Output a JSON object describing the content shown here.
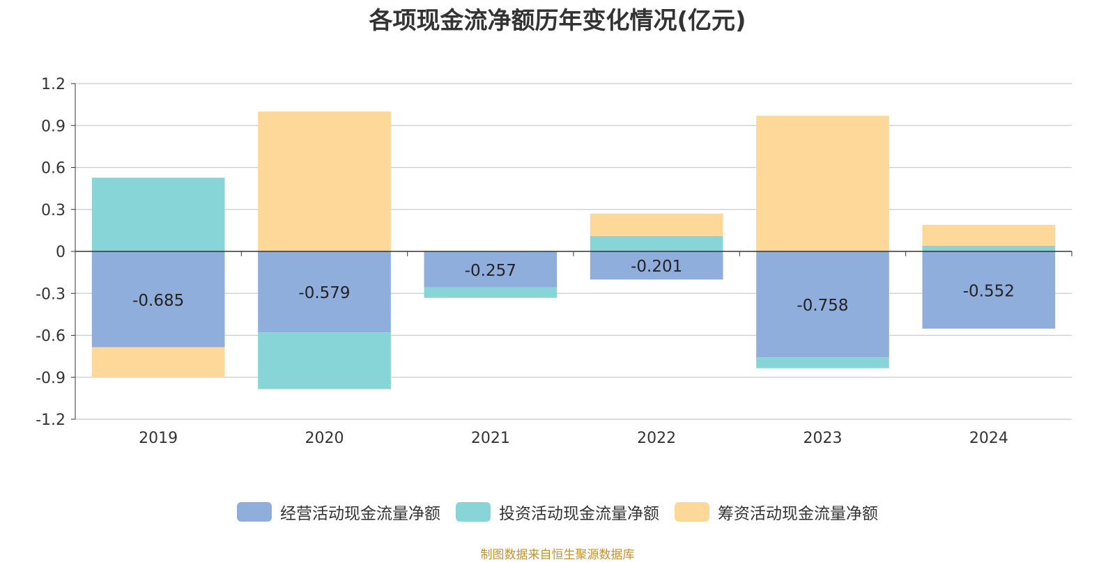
{
  "title": "各项现金流净额历年变化情况(亿元)",
  "source_note": "制图数据来自恒生聚源数据库",
  "colors": {
    "operating": "#8faedb",
    "investing": "#88d5d8",
    "financing": "#fed899",
    "grid": "#cccccc",
    "axis": "#333333",
    "text": "#333333",
    "source": "#c8902a"
  },
  "chart_data": {
    "type": "bar",
    "stacked": true,
    "categories": [
      "2019",
      "2020",
      "2021",
      "2022",
      "2023",
      "2024"
    ],
    "series": [
      {
        "name": "经营活动现金流量净额",
        "values": [
          -0.685,
          -0.579,
          -0.257,
          -0.201,
          -0.758,
          -0.552
        ],
        "labels": [
          "-0.685",
          "-0.579",
          "-0.257",
          "-0.201",
          "-0.758",
          "-0.552"
        ]
      },
      {
        "name": "投资活动现金流量净额",
        "values": [
          0.527,
          -0.405,
          -0.075,
          0.11,
          -0.077,
          0.04
        ]
      },
      {
        "name": "筹资活动现金流量净额",
        "values": [
          -0.216,
          1.0,
          0,
          0.16,
          0.97,
          0.15
        ]
      }
    ],
    "yticks": [
      "1.2",
      "0.9",
      "0.6",
      "0.3",
      "0",
      "-0.3",
      "-0.6",
      "-0.9",
      "-1.2"
    ],
    "ylim": [
      -1.2,
      1.2
    ],
    "grid": true,
    "legend_position": "bottom"
  }
}
